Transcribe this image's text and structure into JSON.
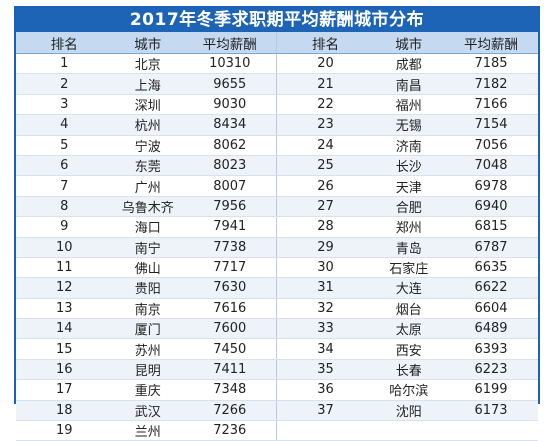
{
  "title": "2017年冬季求职期平均薪酬城市分布",
  "headers": {
    "rank": "排名",
    "city": "城市",
    "salary": "平均薪酬"
  },
  "left_rows": [
    {
      "rank": "1",
      "city": "北京",
      "salary": "10310"
    },
    {
      "rank": "2",
      "city": "上海",
      "salary": "9655"
    },
    {
      "rank": "3",
      "city": "深圳",
      "salary": "9030"
    },
    {
      "rank": "4",
      "city": "杭州",
      "salary": "8434"
    },
    {
      "rank": "5",
      "city": "宁波",
      "salary": "8062"
    },
    {
      "rank": "6",
      "city": "东莞",
      "salary": "8023"
    },
    {
      "rank": "7",
      "city": "广州",
      "salary": "8007"
    },
    {
      "rank": "8",
      "city": "乌鲁木齐",
      "salary": "7956"
    },
    {
      "rank": "9",
      "city": "海口",
      "salary": "7941"
    },
    {
      "rank": "10",
      "city": "南宁",
      "salary": "7738"
    },
    {
      "rank": "11",
      "city": "佛山",
      "salary": "7717"
    },
    {
      "rank": "12",
      "city": "贵阳",
      "salary": "7630"
    },
    {
      "rank": "13",
      "city": "南京",
      "salary": "7616"
    },
    {
      "rank": "14",
      "city": "厦门",
      "salary": "7600"
    },
    {
      "rank": "15",
      "city": "苏州",
      "salary": "7450"
    },
    {
      "rank": "16",
      "city": "昆明",
      "salary": "7411"
    },
    {
      "rank": "17",
      "city": "重庆",
      "salary": "7348"
    },
    {
      "rank": "18",
      "city": "武汉",
      "salary": "7266"
    },
    {
      "rank": "19",
      "city": "兰州",
      "salary": "7236"
    }
  ],
  "right_rows": [
    {
      "rank": "20",
      "city": "成都",
      "salary": "7185"
    },
    {
      "rank": "21",
      "city": "南昌",
      "salary": "7182"
    },
    {
      "rank": "22",
      "city": "福州",
      "salary": "7166"
    },
    {
      "rank": "23",
      "city": "无锡",
      "salary": "7154"
    },
    {
      "rank": "24",
      "city": "济南",
      "salary": "7056"
    },
    {
      "rank": "25",
      "city": "长沙",
      "salary": "7048"
    },
    {
      "rank": "26",
      "city": "天津",
      "salary": "6978"
    },
    {
      "rank": "27",
      "city": "合肥",
      "salary": "6940"
    },
    {
      "rank": "28",
      "city": "郑州",
      "salary": "6815"
    },
    {
      "rank": "29",
      "city": "青岛",
      "salary": "6787"
    },
    {
      "rank": "30",
      "city": "石家庄",
      "salary": "6635"
    },
    {
      "rank": "31",
      "city": "大连",
      "salary": "6622"
    },
    {
      "rank": "32",
      "city": "烟台",
      "salary": "6604"
    },
    {
      "rank": "33",
      "city": "太原",
      "salary": "6489"
    },
    {
      "rank": "34",
      "city": "西安",
      "salary": "6393"
    },
    {
      "rank": "35",
      "city": "长春",
      "salary": "6223"
    },
    {
      "rank": "36",
      "city": "哈尔滨",
      "salary": "6199"
    },
    {
      "rank": "37",
      "city": "沈阳",
      "salary": "6173"
    },
    {
      "rank": "",
      "city": "",
      "salary": ""
    }
  ],
  "colors": {
    "title_bg": "#1e64b6",
    "header_bg": "#c5d9f1",
    "alt_row_bg": "#eef3f9",
    "border": "#1a63b8"
  }
}
